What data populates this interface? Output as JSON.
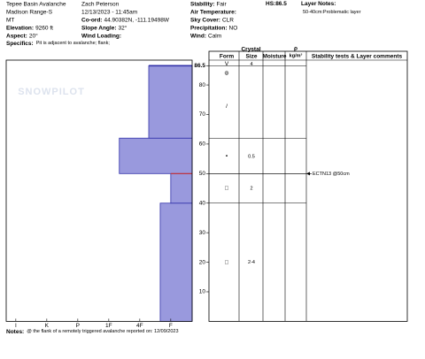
{
  "header": {
    "col1": [
      {
        "value": "Tepee Basin Avalanche"
      },
      {
        "value": "Madison Range-S"
      },
      {
        "value": "MT"
      },
      {
        "label": "Elevation:",
        "value": "9260 ft"
      },
      {
        "label": "Aspect:",
        "value": "20°"
      }
    ],
    "col2": [
      {
        "value": "Zach Peterson"
      },
      {
        "value": "12/13/2023 - 11:45am"
      },
      {
        "label": "Co-ord:",
        "value": "44.90382N, -111.19498W"
      },
      {
        "label": "Slope Angle:",
        "value": "32°"
      },
      {
        "label": "Wind Loading:",
        "value": ""
      }
    ],
    "col3": [
      {
        "label": "Stability:",
        "value": "Fair"
      },
      {
        "label": "Air Temperature:",
        "value": ""
      },
      {
        "label": "Sky Cover:",
        "value": "CLR"
      },
      {
        "label": "Precipitation:",
        "value": "NO"
      },
      {
        "label": "Wind:",
        "value": "Calm"
      }
    ],
    "hs": "HS:86.5",
    "layer_notes_title": "Layer Notes:",
    "layer_notes": "50-40cm:Problematic layer",
    "specifics_label": "Specifics:",
    "specifics": "Pit is adjacent to avalanche; flank;"
  },
  "footer": {
    "label": "Notes:",
    "value": "@ the flank of a remotely triggered avalanche reported on:  12/09/2023"
  },
  "watermark": "SNOWPILOT",
  "chart_data": {
    "type": "hardness-profile",
    "xlim": [
      6.31,
      0.31
    ],
    "xticks": [
      {
        "value": 6,
        "label": "I"
      },
      {
        "value": 5,
        "label": "K"
      },
      {
        "value": 4,
        "label": "P"
      },
      {
        "value": 3,
        "label": "1F"
      },
      {
        "value": 2,
        "label": "4F"
      },
      {
        "value": 1,
        "label": "F"
      }
    ],
    "ylim": [
      0,
      88.4
    ],
    "yticks": [
      10,
      20,
      30,
      40,
      50,
      60,
      70,
      80,
      86.5
    ],
    "color": "#9999dd",
    "edge_color": "#3333aa",
    "layers": [
      {
        "bottom": 0,
        "top": 40,
        "hardness": 1.34
      },
      {
        "bottom": 40,
        "top": 50,
        "hardness": 1
      },
      {
        "bottom": 50,
        "top": 62,
        "hardness": 2.66
      },
      {
        "bottom": 62,
        "top": 86.5,
        "hardness": 1.71
      }
    ],
    "table": {
      "crystal": "Crystal",
      "form": "Form",
      "size": "Size",
      "moisture": "Moisture",
      "rho": "ρ",
      "rho_unit": "kg/m³",
      "comments": "Stability tests & Layer comments"
    },
    "observations": [
      {
        "depth": 86.5,
        "form": "V",
        "size": "4"
      },
      {
        "depth": 84,
        "form": "⊚"
      },
      {
        "depth": 72.8,
        "form": "/"
      },
      {
        "depth": 55.8,
        "form": "•",
        "size": "0.5"
      },
      {
        "depth": 45,
        "form": "□",
        "size": "2"
      },
      {
        "depth": 20,
        "form": "□",
        "size": "2-4"
      }
    ],
    "tests": [
      {
        "depth": 50,
        "label": "ECTN13 @50cm",
        "color": "#cc3333"
      }
    ]
  }
}
